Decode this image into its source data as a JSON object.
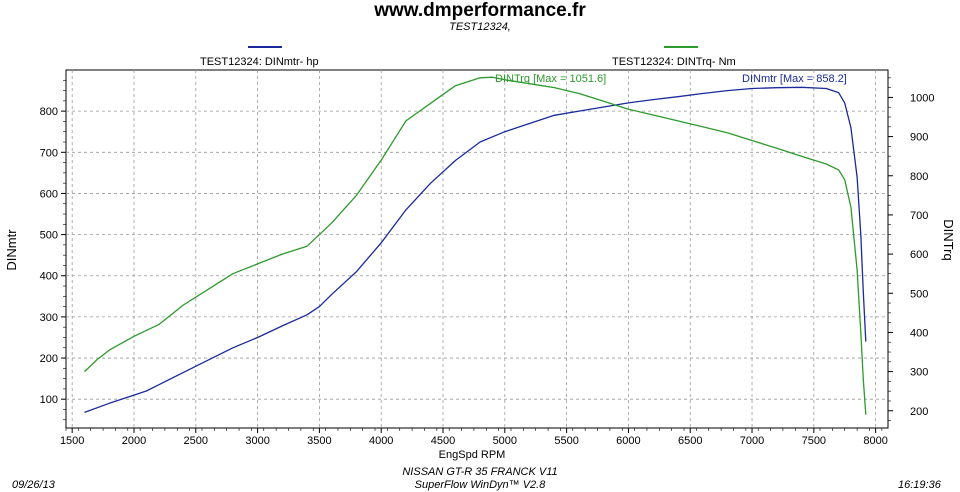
{
  "header": {
    "title": "www.dmperformance.fr",
    "subtitle": "TEST12324,"
  },
  "legend": {
    "hp_label": "TEST12324: DINmtr-  hp",
    "nm_label": "TEST12324: DINTrq-  Nm"
  },
  "footer": {
    "line1": "NISSAN GT-R 35 FRANCK V11",
    "line2": "SuperFlow WinDyn™ V2.8",
    "date": "09/26/13",
    "time": "16:19:36"
  },
  "colors": {
    "hp_series": "#1a2a9a",
    "nm_series": "#2d9a2d",
    "plot_background": "#ffffff",
    "grid": "#9a9a9a"
  },
  "chart_data": {
    "type": "line",
    "xlabel": "EngSpd  RPM",
    "ylabel_left": "DINmtr",
    "ylabel_right": "DINTrq",
    "xlim": [
      1450,
      8100
    ],
    "ylim_left": [
      30,
      900
    ],
    "ylim_right": [
      156,
      1070
    ],
    "x_ticks": [
      1500,
      2000,
      2500,
      3000,
      3500,
      4000,
      4500,
      5000,
      5500,
      6000,
      6500,
      7000,
      7500,
      8000
    ],
    "y_ticks_left": [
      100,
      200,
      300,
      400,
      500,
      600,
      700,
      800
    ],
    "y_ticks_right": [
      200,
      300,
      400,
      500,
      600,
      700,
      800,
      900,
      1000
    ],
    "grid": true,
    "annotations": [
      {
        "text": "DINTrq [Max = 1051.6]",
        "series": "torque",
        "x": 4900,
        "y": 1051.6
      },
      {
        "text": "DINmtr [Max = 858.2]",
        "series": "power",
        "x": 7350,
        "y": 858.2
      }
    ],
    "series": [
      {
        "name": "TEST12324: DINmtr-  hp",
        "axis": "left",
        "color": "#1a2a9a",
        "x": [
          1600,
          1800,
          2000,
          2100,
          2200,
          2400,
          2600,
          2800,
          3000,
          3200,
          3400,
          3500,
          3600,
          3800,
          4000,
          4200,
          4400,
          4600,
          4800,
          5000,
          5200,
          5400,
          5600,
          5800,
          6000,
          6200,
          6400,
          6600,
          6800,
          7000,
          7200,
          7400,
          7600,
          7700,
          7750,
          7800,
          7850,
          7880,
          7900,
          7920
        ],
        "y": [
          68,
          90,
          110,
          120,
          135,
          165,
          195,
          225,
          250,
          278,
          305,
          325,
          355,
          410,
          480,
          560,
          625,
          680,
          725,
          750,
          770,
          790,
          800,
          810,
          820,
          828,
          835,
          843,
          850,
          855,
          857,
          858,
          855,
          845,
          820,
          760,
          640,
          500,
          360,
          240
        ]
      },
      {
        "name": "TEST12324: DINTrq-  Nm",
        "axis": "right",
        "color": "#2d9a2d",
        "x": [
          1600,
          1700,
          1800,
          2000,
          2200,
          2400,
          2600,
          2800,
          3000,
          3200,
          3400,
          3600,
          3800,
          4000,
          4200,
          4400,
          4600,
          4800,
          4900,
          5000,
          5200,
          5400,
          5600,
          5800,
          6000,
          6200,
          6400,
          6600,
          6800,
          7000,
          7200,
          7400,
          7600,
          7700,
          7750,
          7800,
          7850,
          7880,
          7900,
          7920
        ],
        "y": [
          300,
          330,
          355,
          390,
          420,
          470,
          510,
          550,
          575,
          600,
          620,
          680,
          750,
          840,
          940,
          985,
          1030,
          1050,
          1051.6,
          1045,
          1035,
          1025,
          1010,
          990,
          970,
          955,
          940,
          925,
          910,
          890,
          870,
          850,
          830,
          815,
          790,
          720,
          560,
          400,
          280,
          190
        ]
      }
    ]
  }
}
